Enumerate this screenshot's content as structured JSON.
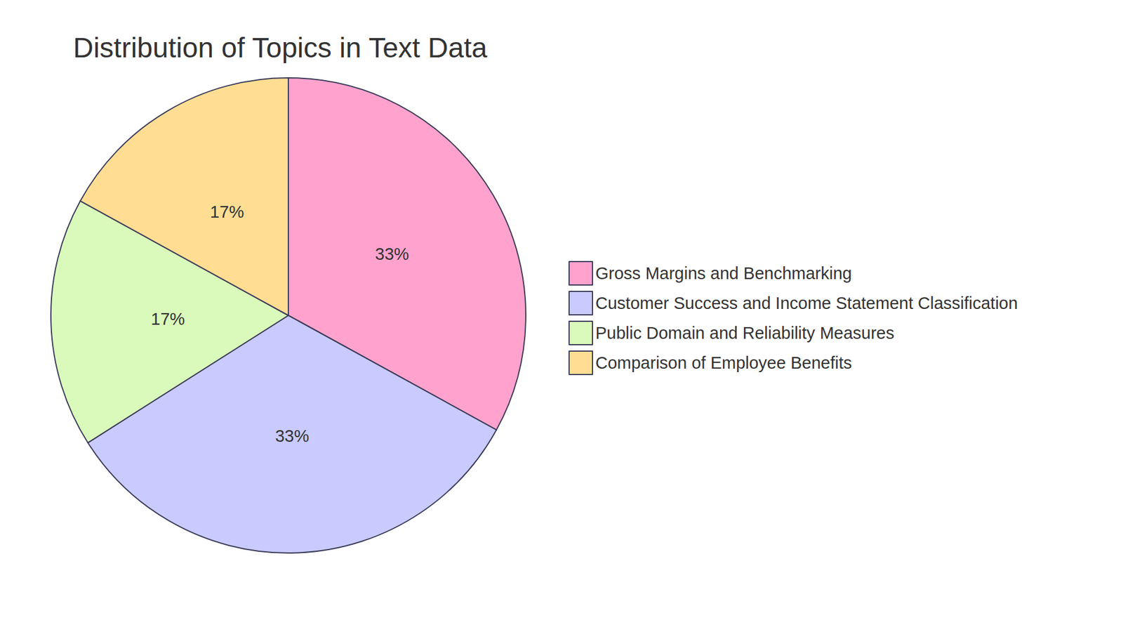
{
  "chart_data": {
    "type": "pie",
    "title": "Distribution of Topics in Text Data",
    "categories": [
      "Gross Margins and Benchmarking",
      "Customer Success and Income Statement Classification",
      "Public Domain and Reliability Measures",
      "Comparison of Employee Benefits"
    ],
    "values": [
      33,
      33,
      17,
      17
    ],
    "value_labels": [
      "33%",
      "33%",
      "17%",
      "17%"
    ],
    "colors": [
      "#ffa3ce",
      "#c9cbff",
      "#dafabb",
      "#ffde93"
    ],
    "data_labels": true,
    "legend": "right"
  }
}
